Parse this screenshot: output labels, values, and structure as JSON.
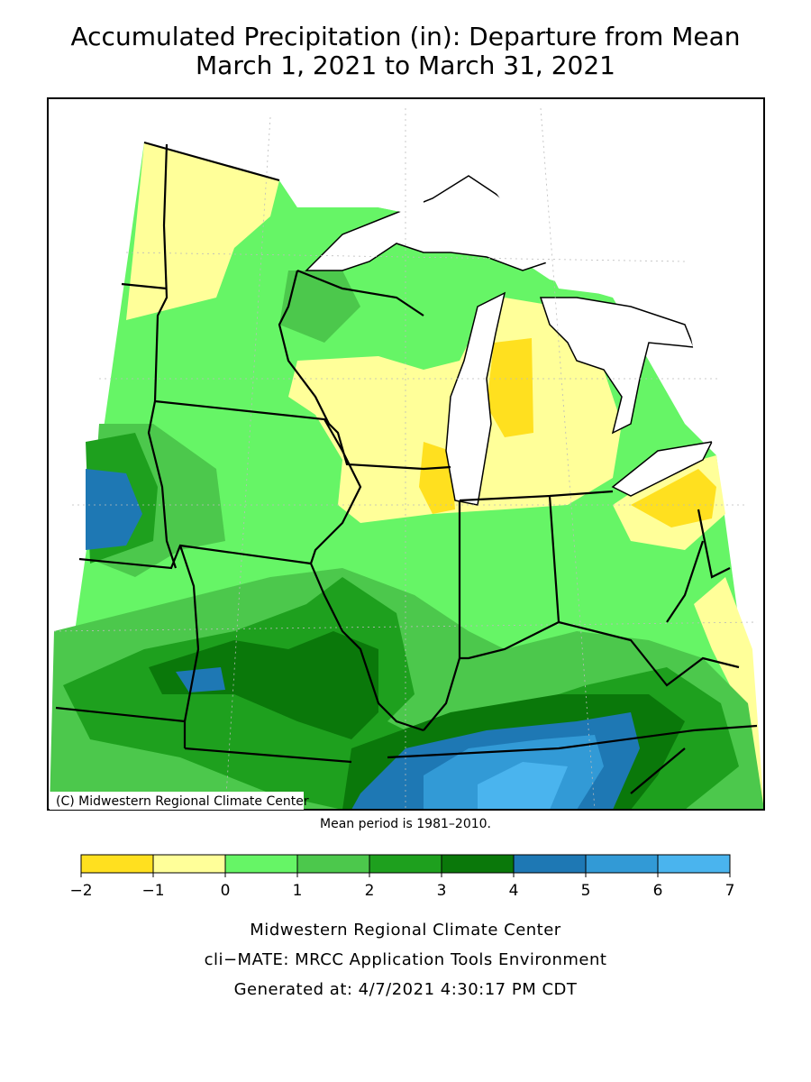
{
  "title": "Accumulated Precipitation (in): Departure from Mean",
  "subtitle": "March 1, 2021 to March 31, 2021",
  "map_credit": "(C) Midwestern Regional Climate Center",
  "note": "Mean period is 1981–2010.",
  "legend": {
    "ticks": [
      {
        "value": -2,
        "label": "−2"
      },
      {
        "value": -1,
        "label": "−1"
      },
      0,
      1,
      2,
      3,
      4,
      5,
      6,
      7
    ],
    "colors": [
      "#ffe01f",
      "#ffff99",
      "#66f566",
      "#4cc84c",
      "#1ea01e",
      "#0a780a",
      "#1e78b4",
      "#329ad6",
      "#4ab4ee"
    ]
  },
  "footer": [
    "Midwestern Regional Climate Center",
    "cli−MATE: MRCC Application Tools Environment",
    "Generated at: 4/7/2021 4:30:17 PM CDT"
  ]
}
